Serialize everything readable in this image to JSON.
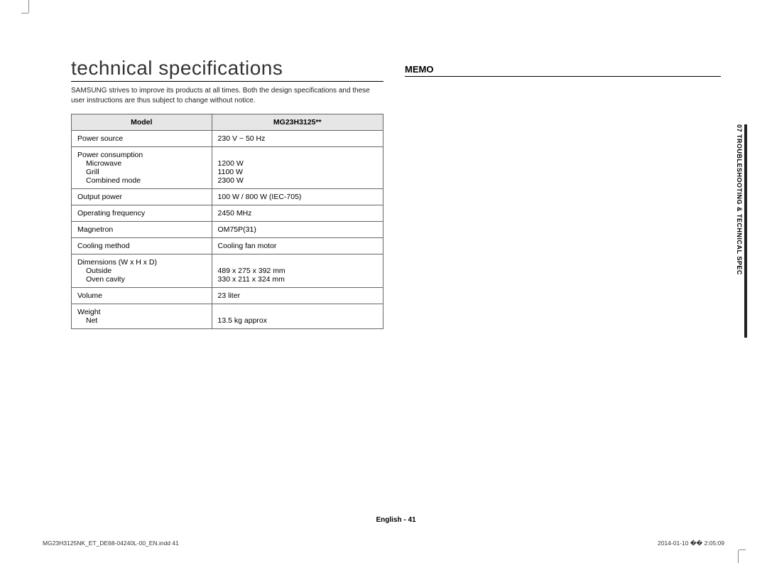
{
  "page": {
    "title": "technical specifications",
    "intro": "SAMSUNG strives to improve its products at all times. Both the design specifications and these user instructions are thus subject to change without notice.",
    "memo_title": "MEMO",
    "side_tab": "07  TROUBLESHOOTING & TECHNICAL SPEC",
    "footer": "English - 41",
    "print_file": "MG23H3125NK_ET_DE68-04240L-00_EN.indd   41",
    "print_date": "2014-01-10   �� 2:05:09"
  },
  "table": {
    "header_left": "Model",
    "header_right": "MG23H3125**",
    "rows": [
      {
        "label": "Power source",
        "subs": [],
        "values": [
          "230 V ~ 50 Hz"
        ]
      },
      {
        "label": "Power consumption",
        "subs": [
          "Microwave",
          "Grill",
          "Combined mode"
        ],
        "values": [
          "",
          "1200 W",
          "1100 W",
          "2300 W"
        ]
      },
      {
        "label": "Output power",
        "subs": [],
        "values": [
          "100 W / 800 W (IEC-705)"
        ]
      },
      {
        "label": "Operating frequency",
        "subs": [],
        "values": [
          "2450 MHz"
        ]
      },
      {
        "label": "Magnetron",
        "subs": [],
        "values": [
          "OM75P(31)"
        ]
      },
      {
        "label": "Cooling method",
        "subs": [],
        "values": [
          "Cooling fan motor"
        ]
      },
      {
        "label": "Dimensions (W x H x D)",
        "subs": [
          "Outside",
          "Oven cavity"
        ],
        "values": [
          "",
          "489 x 275 x 392 mm",
          "330 x 211 x 324 mm"
        ]
      },
      {
        "label": "Volume",
        "subs": [],
        "values": [
          "23 liter"
        ]
      },
      {
        "label": "Weight",
        "subs": [
          "Net"
        ],
        "values": [
          "",
          "13.5 kg approx"
        ]
      }
    ]
  },
  "style": {
    "page_bg": "#ffffff",
    "title_color": "#333333",
    "title_fontsize": 28,
    "text_color": "#222222",
    "body_fontsize": 10.5,
    "header_bg": "#e6e6e6",
    "border_color": "#666666",
    "tab_bar_color": "#222222"
  }
}
